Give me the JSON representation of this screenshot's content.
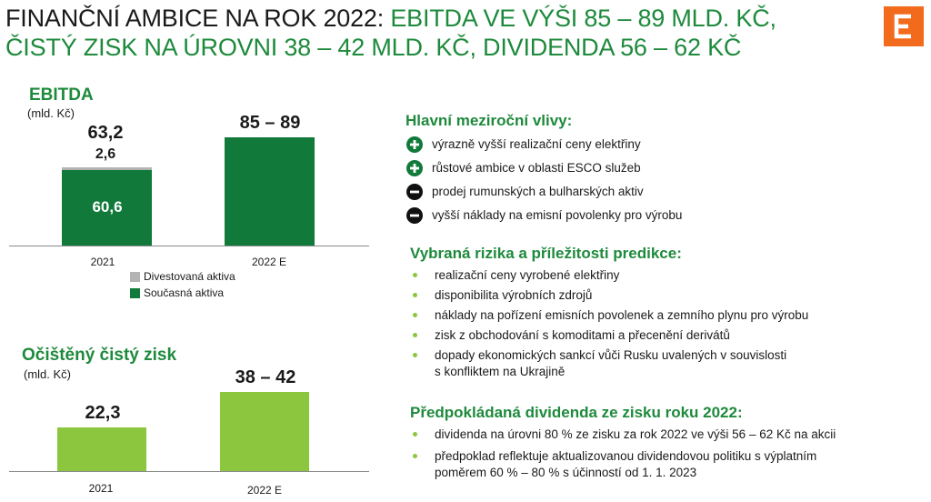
{
  "header": {
    "title_dark": "FINANČNÍ AMBICE NA ROK 2022: ",
    "title_green_1": "EBITDA VE VÝŠI 85 – 89 MLD. KČ,",
    "title_green_2": "ČISTÝ ZISK NA ÚROVNI 38 – 42 MLD. KČ, DIVIDENDA 56 – 62 KČ"
  },
  "colors": {
    "dark_green": "#117a3b",
    "light_green": "#8cc63f",
    "grey": "#b3b3b3",
    "brand_orange": "#f26a1b",
    "title_green": "#1e8a3c"
  },
  "chart_data": [
    {
      "type": "bar",
      "stacked": true,
      "title": "EBITDA",
      "subtitle": "(mld. Kč)",
      "categories": [
        "2021",
        "2022 E"
      ],
      "series": [
        {
          "name": "Současná aktiva",
          "values": [
            60.6,
            87
          ],
          "labels": [
            "60,6",
            ""
          ]
        },
        {
          "name": "Divestovaná aktiva",
          "values": [
            2.6,
            0
          ],
          "labels": [
            "2,6",
            ""
          ]
        }
      ],
      "totals": [
        "63,2",
        "85 – 89"
      ],
      "ylim": [
        0,
        95
      ],
      "legend_position": "bottom"
    },
    {
      "type": "bar",
      "title": "Očištěný čistý zisk",
      "subtitle": "(mld. Kč)",
      "categories": [
        "2021",
        "2022 E"
      ],
      "values": [
        22.3,
        40
      ],
      "labels": [
        "22,3",
        "38 – 42"
      ],
      "ylim": [
        0,
        48
      ]
    }
  ],
  "influences": {
    "title": "Hlavní meziroční vlivy:",
    "items": [
      {
        "sign": "plus",
        "text": "výrazně vyšší realizační ceny elektřiny"
      },
      {
        "sign": "plus",
        "text": "růstové ambice v oblasti ESCO služeb"
      },
      {
        "sign": "minus",
        "text": "prodej rumunských a bulharských aktiv"
      },
      {
        "sign": "minus",
        "text": "vyšší náklady na emisní povolenky pro výrobu"
      }
    ]
  },
  "risks": {
    "title": "Vybraná rizika a příležitosti predikce:",
    "items": [
      {
        "text": "realizační ceny vyrobené elektřiny"
      },
      {
        "text": "disponibilita výrobních zdrojů"
      },
      {
        "text": "náklady na pořízení emisních povolenek a zemního plynu pro výrobu"
      },
      {
        "text": "zisk z obchodování s komoditami a přecenění derivátů"
      },
      {
        "text": "dopady ekonomických sankcí vůči Rusku uvalených v souvislosti",
        "text2": "s konfliktem na Ukrajině"
      }
    ]
  },
  "dividend": {
    "title": "Předpokládaná dividenda ze zisku roku 2022:",
    "items": [
      {
        "text": "dividenda na úrovni 80 % ze zisku za rok 2022 ve výši 56 – 62 Kč na akcii"
      },
      {
        "text": "předpoklad reflektuje aktualizovanou dividendovou politiku s výplatním",
        "text2": "poměrem 60 % – 80 % s účinností od 1. 1. 2023"
      }
    ]
  }
}
